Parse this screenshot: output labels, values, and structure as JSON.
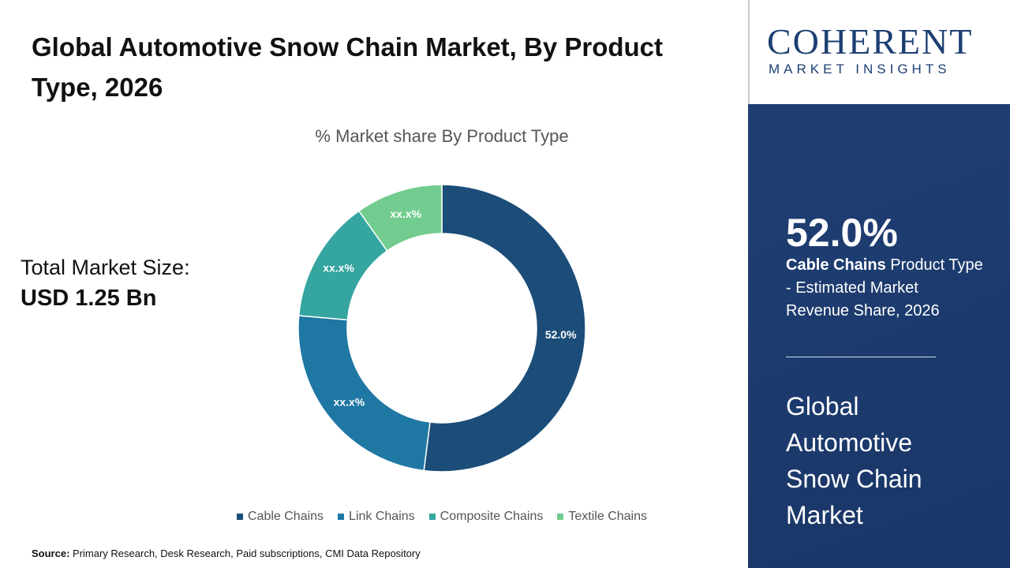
{
  "header": {
    "title": "Global Automotive Snow Chain Market, By Product Type, 2026"
  },
  "market_size": {
    "label": "Total Market Size:",
    "value": "USD 1.25 Bn"
  },
  "chart_data": {
    "type": "donut",
    "title": "% Market share By Product Type",
    "categories": [
      "Cable Chains",
      "Link Chains",
      "Composite Chains",
      "Textile Chains"
    ],
    "values": [
      52.0,
      24.4,
      13.8,
      9.8
    ],
    "value_labels": [
      "52.0%",
      "xx.x%",
      "xx.x%",
      "xx.x%"
    ],
    "colors": [
      "#1b4d78",
      "#1f77a3",
      "#35a59f",
      "#72cc8f"
    ],
    "legend": "bottom"
  },
  "source": {
    "label": "Source:",
    "text": "Primary Research, Desk Research, Paid subscriptions, CMI Data Repository"
  },
  "logo": {
    "name": "COHERENT",
    "tagline": "MARKET INSIGHTS"
  },
  "panel": {
    "highlight": "52.0%",
    "segment": "Cable Chains",
    "description": "Product Type - Estimated Market Revenue Share, 2026",
    "market": "Global Automotive Snow Chain Market"
  }
}
